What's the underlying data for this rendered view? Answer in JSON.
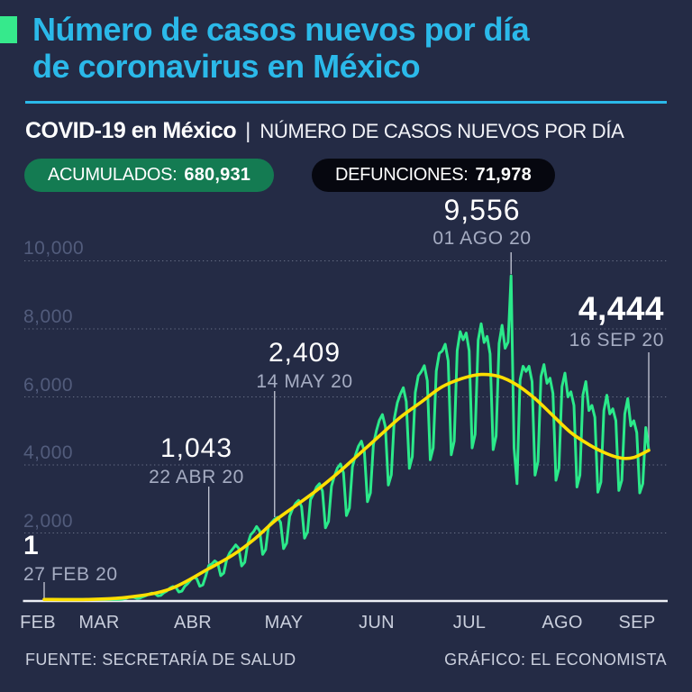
{
  "header": {
    "accent_color": "#36E98C",
    "title_color": "#2BB9E9",
    "title_line1": "Número de casos nuevos por día",
    "title_line2": "de coronavirus en México",
    "subtitle_bold": "COVID-19 en México",
    "subtitle_separator": "|",
    "subtitle_rest": "NÚMERO DE CASOS NUEVOS POR DÍA",
    "badges": [
      {
        "label": "ACUMULADOS:",
        "value": "680,931",
        "bg_color": "#147B52"
      },
      {
        "label": "DEFUNCIONES:",
        "value": "71,978",
        "bg_color": "#06070F"
      }
    ]
  },
  "chart_data": {
    "type": "line",
    "title": "Número de casos nuevos por día de coronavirus en México",
    "xlabel": "",
    "ylabel": "",
    "x_start": "27 FEB 20",
    "x_end": "16 SEP 20",
    "months": [
      "FEB",
      "MAR",
      "ABR",
      "MAY",
      "JUN",
      "JUL",
      "AGO",
      "SEP"
    ],
    "y_tick_labels": [
      "2,000",
      "4,000",
      "6,000",
      "8,000",
      "10,000"
    ],
    "y_tick_values": [
      2000,
      4000,
      6000,
      8000,
      10000
    ],
    "ylim": [
      0,
      10600
    ],
    "grid": "horizontal-dotted",
    "legend": "none",
    "colors": {
      "daily": "#2BE98A",
      "trend": "#FFDF00",
      "baseline": "#EDEFF5"
    },
    "series": [
      {
        "name": "casos nuevos por día",
        "color": "#2BE98A",
        "daily_values": [
          1,
          1,
          2,
          1,
          2,
          3,
          5,
          6,
          7,
          6,
          4,
          5,
          8,
          11,
          14,
          17,
          15,
          11,
          12,
          20,
          28,
          38,
          46,
          43,
          30,
          33,
          52,
          70,
          98,
          112,
          105,
          78,
          85,
          125,
          155,
          205,
          233,
          218,
          150,
          165,
          245,
          295,
          380,
          425,
          400,
          265,
          290,
          435,
          515,
          625,
          695,
          655,
          435,
          475,
          740,
          1043,
          1090,
          1180,
          1110,
          745,
          820,
          1220,
          1420,
          1530,
          1650,
          1550,
          1030,
          1140,
          1680,
          1950,
          2040,
          2190,
          2060,
          1370,
          1510,
          2210,
          2310,
          2409,
          2460,
          2310,
          1540,
          1700,
          2490,
          2710,
          2870,
          2960,
          2770,
          1850,
          2030,
          2980,
          3150,
          3350,
          3450,
          3230,
          2150,
          2340,
          3380,
          3680,
          3910,
          4030,
          3770,
          2510,
          2730,
          3940,
          4290,
          4550,
          4700,
          4390,
          2920,
          3180,
          4600,
          5000,
          5310,
          5480,
          5120,
          3410,
          3710,
          5360,
          5830,
          6080,
          6270,
          5860,
          3900,
          4240,
          6130,
          6620,
          6740,
          6920,
          6480,
          4150,
          4500,
          6760,
          7280,
          7350,
          7550,
          7060,
          4300,
          4700,
          7360,
          7920,
          7680,
          7880,
          7360,
          4500,
          4900,
          7670,
          8150,
          7600,
          7780,
          7270,
          4450,
          4850,
          7570,
          8105,
          7430,
          7610,
          9556,
          4500,
          3450,
          6500,
          6900,
          6750,
          6900,
          6450,
          3700,
          4100,
          6600,
          6950,
          6400,
          6550,
          6100,
          3550,
          3900,
          6300,
          6700,
          6000,
          6150,
          5750,
          3350,
          3700,
          6050,
          6450,
          5600,
          5750,
          5400,
          3200,
          3500,
          5600,
          6050,
          5500,
          5650,
          5300,
          3250,
          3550,
          5500,
          5950,
          5150,
          5300,
          4950,
          3180,
          3450,
          5100,
          4444
        ]
      },
      {
        "name": "tendencia suavizada",
        "color": "#FFDF00",
        "points_day_value": [
          [
            0,
            15
          ],
          [
            14,
            30
          ],
          [
            28,
            110
          ],
          [
            42,
            350
          ],
          [
            55,
            950
          ],
          [
            63,
            1350
          ],
          [
            70,
            1800
          ],
          [
            77,
            2350
          ],
          [
            84,
            2800
          ],
          [
            91,
            3250
          ],
          [
            98,
            3750
          ],
          [
            105,
            4300
          ],
          [
            112,
            4850
          ],
          [
            119,
            5400
          ],
          [
            126,
            5850
          ],
          [
            133,
            6300
          ],
          [
            140,
            6550
          ],
          [
            146,
            6660
          ],
          [
            152,
            6600
          ],
          [
            158,
            6350
          ],
          [
            164,
            5950
          ],
          [
            170,
            5450
          ],
          [
            176,
            4950
          ],
          [
            182,
            4600
          ],
          [
            188,
            4330
          ],
          [
            193,
            4200
          ],
          [
            197,
            4220
          ],
          [
            202,
            4430
          ]
        ]
      }
    ],
    "annotations": [
      {
        "value": "1",
        "date": "27 FEB 20",
        "day": 0,
        "numeric": 1,
        "emphasis": "bold"
      },
      {
        "value": "1,043",
        "date": "22 ABR 20",
        "day": 55,
        "numeric": 1043,
        "emphasis": "regular"
      },
      {
        "value": "2,409",
        "date": "14 MAY 20",
        "day": 77,
        "numeric": 2409,
        "emphasis": "regular"
      },
      {
        "value": "9,556",
        "date": "01 AGO 20",
        "day": 156,
        "numeric": 9556,
        "emphasis": "regular"
      },
      {
        "value": "4,444",
        "date": "16 SEP 20",
        "day": 202,
        "numeric": 4444,
        "emphasis": "bold"
      }
    ]
  },
  "footer": {
    "source": "FUENTE: SECRETARÍA DE SALUD",
    "credit": "GRÁFICO: EL ECONOMISTA"
  }
}
